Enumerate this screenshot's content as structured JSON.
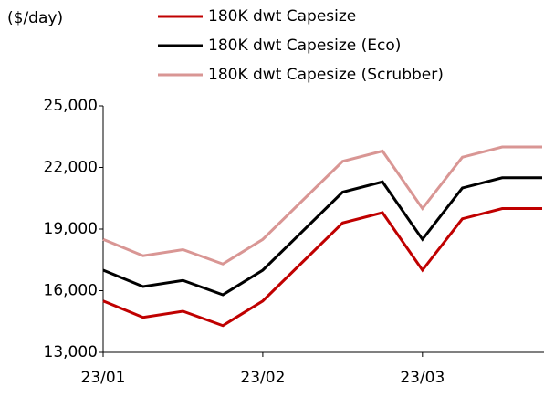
{
  "chart_data": {
    "type": "line",
    "y_axis_label": "($/day)",
    "categories": [
      "23/01",
      null,
      null,
      null,
      "23/02",
      null,
      null,
      null,
      "23/03",
      null,
      null,
      null
    ],
    "series": [
      {
        "name": "180K dwt Capesize",
        "color": "#c00000",
        "values": [
          15500,
          14700,
          15000,
          14300,
          15500,
          17400,
          19300,
          19800,
          17000,
          19500,
          20000,
          20000
        ]
      },
      {
        "name": "180K dwt Capesize (Eco)",
        "color": "#000000",
        "values": [
          17000,
          16200,
          16500,
          15800,
          17000,
          18900,
          20800,
          21300,
          18500,
          21000,
          21500,
          21500
        ]
      },
      {
        "name": "180K dwt Capesize (Scrubber)",
        "color": "#d99694",
        "values": [
          18500,
          17700,
          18000,
          17300,
          18500,
          20400,
          22300,
          22800,
          20000,
          22500,
          23000,
          23000
        ]
      }
    ],
    "ylim": [
      13000,
      25000
    ],
    "yticks": [
      {
        "value": 13000,
        "label": "13,000"
      },
      {
        "value": 16000,
        "label": "16,000"
      },
      {
        "value": 19000,
        "label": "19,000"
      },
      {
        "value": 22000,
        "label": "22,000"
      },
      {
        "value": 25000,
        "label": "25,000"
      }
    ],
    "grid": false,
    "legend": "top-right"
  }
}
